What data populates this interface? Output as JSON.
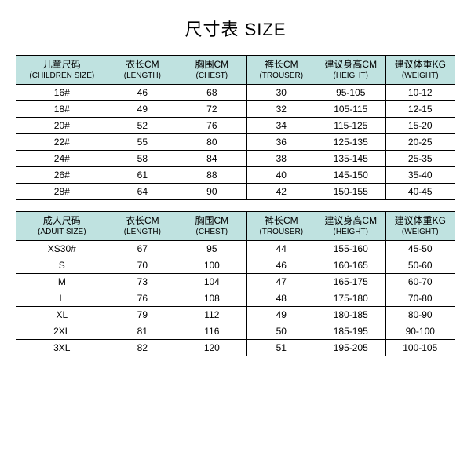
{
  "title": "尺寸表 SIZE",
  "header_bg": "#bfe2e0",
  "columns_children": [
    {
      "zh": "儿童尺码",
      "en": "(CHILDREN SIZE)"
    },
    {
      "zh": "衣长CM",
      "en": "(LENGTH)"
    },
    {
      "zh": "胸围CM",
      "en": "(CHEST)"
    },
    {
      "zh": "裤长CM",
      "en": "(TROUSER)"
    },
    {
      "zh": "建议身高CM",
      "en": "(HEIGHT)"
    },
    {
      "zh": "建议体重KG",
      "en": "(WEIGHT)"
    }
  ],
  "columns_adult": [
    {
      "zh": "成人尺码",
      "en": "(ADUIT SIZE)"
    },
    {
      "zh": "衣长CM",
      "en": "(LENGTH)"
    },
    {
      "zh": "胸围CM",
      "en": "(CHEST)"
    },
    {
      "zh": "裤长CM",
      "en": "(TROUSER)"
    },
    {
      "zh": "建议身高CM",
      "en": "(HEIGHT)"
    },
    {
      "zh": "建议体重KG",
      "en": "(WEIGHT)"
    }
  ],
  "children_rows": [
    [
      "16#",
      "46",
      "68",
      "30",
      "95-105",
      "10-12"
    ],
    [
      "18#",
      "49",
      "72",
      "32",
      "105-115",
      "12-15"
    ],
    [
      "20#",
      "52",
      "76",
      "34",
      "115-125",
      "15-20"
    ],
    [
      "22#",
      "55",
      "80",
      "36",
      "125-135",
      "20-25"
    ],
    [
      "24#",
      "58",
      "84",
      "38",
      "135-145",
      "25-35"
    ],
    [
      "26#",
      "61",
      "88",
      "40",
      "145-150",
      "35-40"
    ],
    [
      "28#",
      "64",
      "90",
      "42",
      "150-155",
      "40-45"
    ]
  ],
  "adult_rows": [
    [
      "XS30#",
      "67",
      "95",
      "44",
      "155-160",
      "45-50"
    ],
    [
      "S",
      "70",
      "100",
      "46",
      "160-165",
      "50-60"
    ],
    [
      "M",
      "73",
      "104",
      "47",
      "165-175",
      "60-70"
    ],
    [
      "L",
      "76",
      "108",
      "48",
      "175-180",
      "70-80"
    ],
    [
      "XL",
      "79",
      "112",
      "49",
      "180-185",
      "80-90"
    ],
    [
      "2XL",
      "81",
      "116",
      "50",
      "185-195",
      "90-100"
    ],
    [
      "3XL",
      "82",
      "120",
      "51",
      "195-205",
      "100-105"
    ]
  ]
}
